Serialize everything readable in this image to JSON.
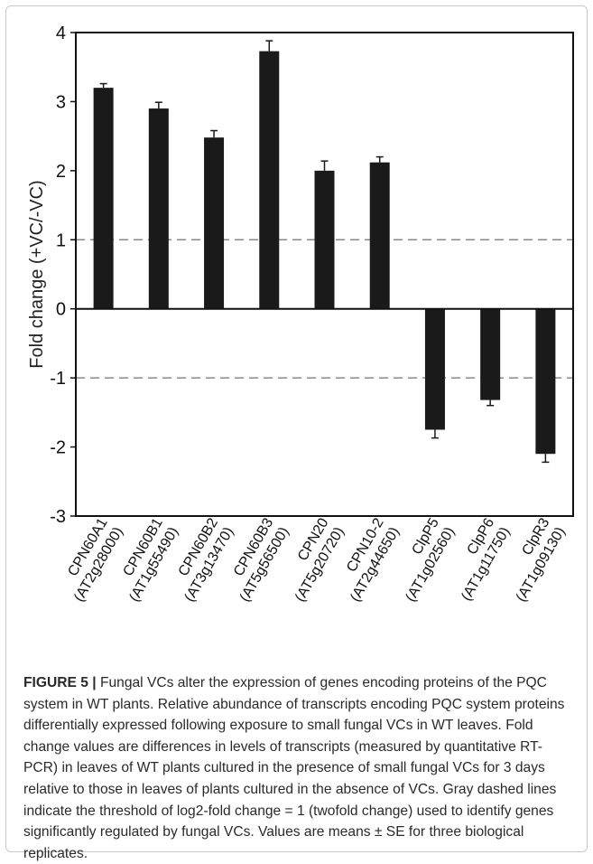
{
  "chart_data": {
    "type": "bar",
    "title": "",
    "xlabel": "",
    "ylabel": "Fold change (+VC/-VC)",
    "ylim": [
      -3,
      4
    ],
    "yticks": [
      "-3",
      "-2",
      "-1",
      "0",
      "1",
      "2",
      "3",
      "4"
    ],
    "categories": [
      {
        "gene": "CPN60A1",
        "locus": "(AT2g28000)"
      },
      {
        "gene": "CPN60B1",
        "locus": "(AT1g55490)"
      },
      {
        "gene": "CPN60B2",
        "locus": "(AT3g13470)"
      },
      {
        "gene": "CPN60B3",
        "locus": "(AT5g56500)"
      },
      {
        "gene": "CPN20",
        "locus": "(AT5g20720)"
      },
      {
        "gene": "CPN10-2",
        "locus": "(AT2g44650)"
      },
      {
        "gene": "ClpP5",
        "locus": "(AT1g02560)"
      },
      {
        "gene": "ClpP6",
        "locus": "(AT1g11750)"
      },
      {
        "gene": "ClpR3",
        "locus": "(AT1g09130)"
      }
    ],
    "values": [
      3.2,
      2.9,
      2.48,
      3.73,
      2.0,
      2.12,
      -1.75,
      -1.32,
      -2.1
    ],
    "errors": [
      0.06,
      0.09,
      0.1,
      0.15,
      0.14,
      0.08,
      0.12,
      0.08,
      0.12
    ],
    "threshold_lines": [
      1,
      -1
    ],
    "bar_color": "#1a1a1a",
    "threshold_color": "#8a8a8a",
    "grid": false,
    "legend": "none"
  },
  "caption": {
    "label": "FIGURE 5 |",
    "text": " Fungal VCs alter the expression of genes encoding proteins of the PQC system in WT plants. Relative abundance of transcripts encoding PQC system proteins differentially expressed following exposure to small fungal VCs in WT leaves. Fold change values are differences in levels of transcripts (measured by quantitative RT-PCR) in leaves of WT plants cultured in the presence of small fungal VCs for 3 days relative to those in leaves of plants cultured in the absence of VCs. Gray dashed lines indicate the threshold of log2-fold change = 1 (twofold change) used to identify genes significantly regulated by fungal VCs. Values are means ± SE for three biological replicates."
  }
}
